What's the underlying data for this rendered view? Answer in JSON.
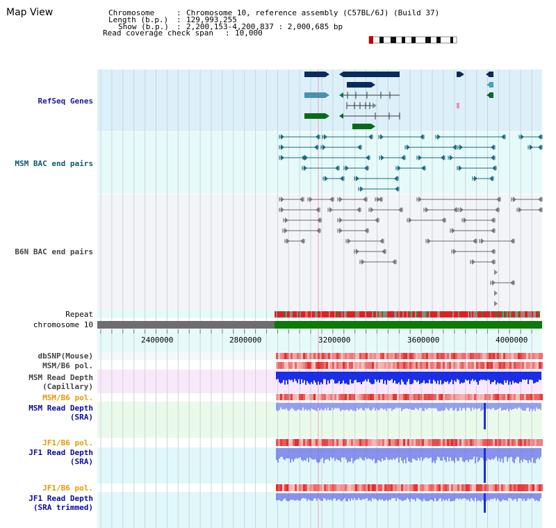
{
  "title": "Map View",
  "info": {
    "chromosome_label": "Chromosome",
    "chromosome_value": "Chromosome 10, reference assembly (C57BL/6J) (Build 37)",
    "length_label": "Length (b.p.)",
    "length_value": "129,993,255",
    "show_label": "Show (b.p.)",
    "show_value": "2,200,153-4,200,837 : 2,000,685 bp",
    "coverage_label": "Read coverage check span",
    "coverage_value": "10,000"
  },
  "tracks": {
    "refseq": "RefSeq Genes",
    "msm_bac": "MSM BAC end pairs",
    "b6n_bac": "B6N BAC end pairs",
    "repeat": "Repeat",
    "chromosome": "chromosome 10",
    "dbsnp": "dbSNP(Mouse)",
    "msm_b6_pol": "MSM/B6 pol.",
    "msm_depth_cap_1": "MSM Read Depth",
    "msm_depth_cap_2": "(Capillary)",
    "msm_b6_pol2": "MSM/B6 pol.",
    "msm_depth_sra_1": "MSM Read Depth",
    "msm_depth_sra_2": "(SRA)",
    "jf1_b6_pol": "JF1/B6 pol.",
    "jf1_depth_sra_1": "JF1 Read Depth",
    "jf1_depth_sra_2": "(SRA)",
    "jf1_b6_pol2": "JF1/B6 pol.",
    "jf1_depth_trim_1": "JF1 Read Depth",
    "jf1_depth_trim_2": "(SRA trimmed)"
  },
  "axis": {
    "ticks": [
      "2400000",
      "2800000",
      "3200000",
      "3600000",
      "4000000"
    ]
  },
  "colors": {
    "refseq_bg": "#dcf0fa",
    "msm_bac_bg": "#e6fafa",
    "b6n_bac_bg": "#f2f4f8",
    "chrom_gray": "#6e6e6e",
    "chrom_green": "#0a7a0a",
    "depth_blue": "#1a2ee6",
    "depth_light": "#7a80f0",
    "orange_label": "#e69a00",
    "blue_label": "#0a0aa0",
    "msm_label": "#0a5a6a"
  }
}
